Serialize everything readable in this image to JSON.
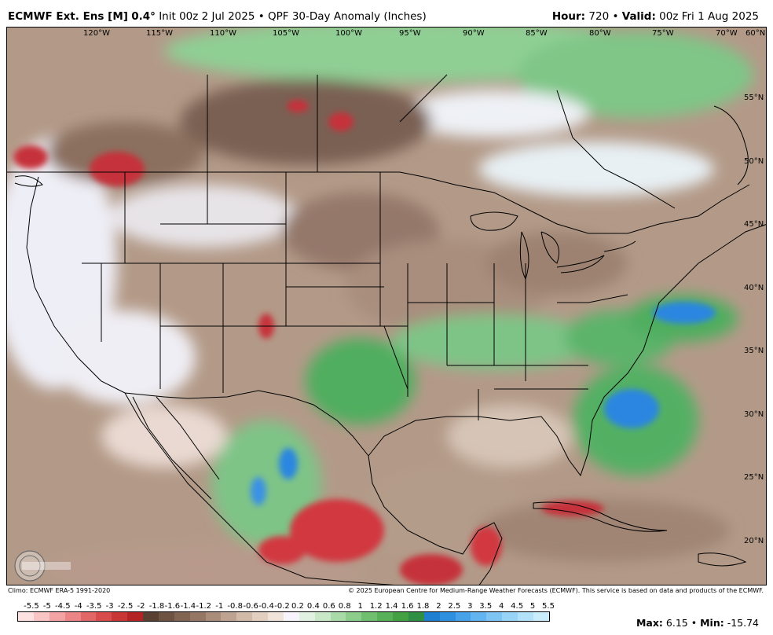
{
  "header": {
    "model": "ECMWF Ext. Ens [M]",
    "resolution": "0.4",
    "init": "Init 00z 2 Jul 2025",
    "product": "QPF 30-Day Anomaly (Inches)",
    "hour_label": "Hour:",
    "hour": "720",
    "valid_label": "Valid:",
    "valid": "00z Fri 1 Aug 2025"
  },
  "longitude_labels": [
    "120°W",
    "115°W",
    "110°W",
    "105°W",
    "100°W",
    "95°W",
    "90°W",
    "85°W",
    "80°W",
    "75°W",
    "70°W",
    "60°N"
  ],
  "latitude_labels": [
    "55°N",
    "50°N",
    "45°N",
    "40°N",
    "35°N",
    "30°N",
    "25°N",
    "20°N"
  ],
  "credits": {
    "left": "Climo: ECMWF ERA-5 1991-2020",
    "right": "© 2025 European Centre for Medium-Range Weather Forecasts (ECMWF). This service is based on data and products of the ECMWF."
  },
  "colorbar": {
    "labels": [
      "-5.5",
      "-5",
      "-4.5",
      "-4",
      "-3.5",
      "-3",
      "-2.5",
      "-2",
      "-1.8",
      "-1.6",
      "-1.4",
      "-1.2",
      "-1",
      "-0.8",
      "-0.6",
      "-0.4",
      "-0.2",
      "0.2",
      "0.4",
      "0.6",
      "0.8",
      "1",
      "1.2",
      "1.4",
      "1.6",
      "1.8",
      "2",
      "2.5",
      "3",
      "3.5",
      "4",
      "4.5",
      "5",
      "5.5"
    ],
    "colors": [
      "#fde0e0",
      "#f9c4c4",
      "#f3a3a3",
      "#ec8585",
      "#e26868",
      "#d84c4c",
      "#c93636",
      "#b52424",
      "#5a4032",
      "#6e5242",
      "#826453",
      "#967766",
      "#aa8c7b",
      "#bea392",
      "#d2baa9",
      "#e2cfc0",
      "#f0e4da",
      "#f7f5fb",
      "#e2f2e2",
      "#c8e8c8",
      "#a9dba9",
      "#8ccd8c",
      "#70bf70",
      "#58b058",
      "#43a043",
      "#2f8f45",
      "#1f7fd0",
      "#2f90e0",
      "#47a2ea",
      "#62b5f0",
      "#7ec5f4",
      "#98d4f7",
      "#b2e1fa",
      "#caedfc"
    ]
  },
  "stats": {
    "max_label": "Max:",
    "max": "6.15",
    "min_label": "Min:",
    "min": "-15.74"
  },
  "colors": {
    "dry": "#a08472",
    "wet": "#4bac5a",
    "very_wet": "#2a86e0",
    "very_dry": "#c6303a",
    "neutral": "#f4f3fb"
  }
}
